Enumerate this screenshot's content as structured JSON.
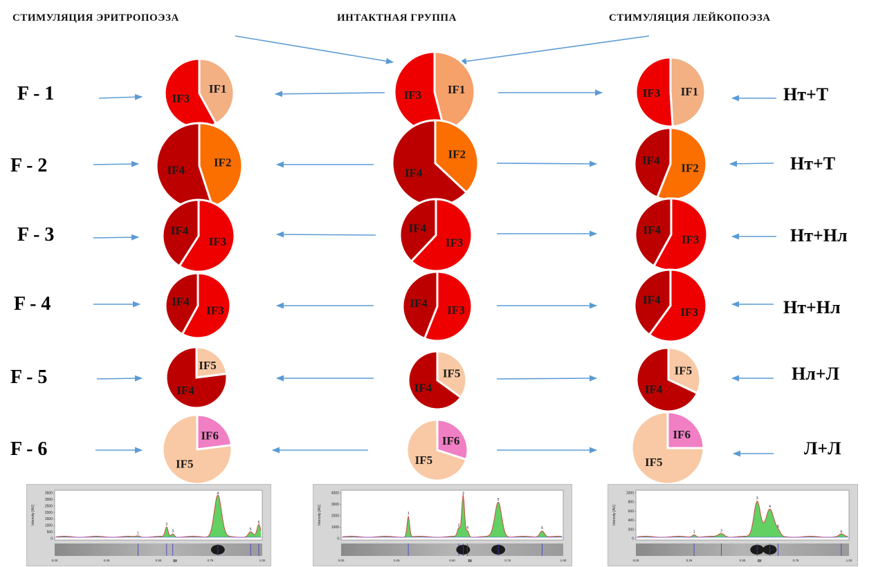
{
  "headers": {
    "left": "СТИМУЛЯЦИЯ ЭРИТРОПОЭЗА",
    "center": "ИНТАКТНАЯ ГРУППА",
    "right": "СТИМУЛЯЦИЯ ЛЕЙКОПОЭЗА"
  },
  "rows": [
    {
      "label": "F - 1",
      "formula": "Нт+Т"
    },
    {
      "label": "F - 2",
      "formula": "Нт+Т"
    },
    {
      "label": "F - 3",
      "formula": "Нт+Нл"
    },
    {
      "label": "F - 4",
      "formula": "Нт+Нл"
    },
    {
      "label": "F - 5",
      "formula": "Нл+Л"
    },
    {
      "label": "F - 6",
      "formula": "Л+Л"
    }
  ],
  "colors": {
    "IF1": "#f2b083",
    "IF2": "#fb6e00",
    "IF3": "#ef0000",
    "IF4": "#bc0000",
    "IF5": "#f8c9a4",
    "IF6": "#f07fc4",
    "IF1_center": "#f6a06a",
    "arrow": "#5b9bd5"
  },
  "pies": [
    [
      {
        "slices": [
          {
            "label": "IF1",
            "fraction": 0.42,
            "color": "IF1"
          },
          {
            "label": "IF3",
            "fraction": 0.58,
            "color": "IF3"
          }
        ]
      },
      {
        "slices": [
          {
            "label": "IF1",
            "fraction": 0.46,
            "color": "IF1_center"
          },
          {
            "label": "IF3",
            "fraction": 0.54,
            "color": "IF3"
          }
        ]
      },
      {
        "slices": [
          {
            "label": "IF1",
            "fraction": 0.49,
            "color": "IF1"
          },
          {
            "label": "IF3",
            "fraction": 0.51,
            "color": "IF3"
          }
        ]
      }
    ],
    [
      {
        "slices": [
          {
            "label": "IF2",
            "fraction": 0.45,
            "color": "IF2"
          },
          {
            "label": "IF4",
            "fraction": 0.55,
            "color": "IF4"
          }
        ]
      },
      {
        "slices": [
          {
            "label": "IF2",
            "fraction": 0.37,
            "color": "IF2"
          },
          {
            "label": "IF4",
            "fraction": 0.63,
            "color": "IF4"
          }
        ]
      },
      {
        "slices": [
          {
            "label": "IF2",
            "fraction": 0.56,
            "color": "IF2"
          },
          {
            "label": "IF4",
            "fraction": 0.44,
            "color": "IF4"
          }
        ]
      }
    ],
    [
      {
        "slices": [
          {
            "label": "IF3",
            "fraction": 0.59,
            "color": "IF3"
          },
          {
            "label": "IF4",
            "fraction": 0.41,
            "color": "IF4"
          }
        ]
      },
      {
        "slices": [
          {
            "label": "IF3",
            "fraction": 0.62,
            "color": "IF3"
          },
          {
            "label": "IF4",
            "fraction": 0.38,
            "color": "IF4"
          }
        ]
      },
      {
        "slices": [
          {
            "label": "IF3",
            "fraction": 0.58,
            "color": "IF3"
          },
          {
            "label": "IF4",
            "fraction": 0.42,
            "color": "IF4"
          }
        ]
      }
    ],
    [
      {
        "slices": [
          {
            "label": "IF3",
            "fraction": 0.58,
            "color": "IF3"
          },
          {
            "label": "IF4",
            "fraction": 0.42,
            "color": "IF4"
          }
        ]
      },
      {
        "slices": [
          {
            "label": "IF3",
            "fraction": 0.56,
            "color": "IF3"
          },
          {
            "label": "IF4",
            "fraction": 0.44,
            "color": "IF4"
          }
        ]
      },
      {
        "slices": [
          {
            "label": "IF3",
            "fraction": 0.6,
            "color": "IF3"
          },
          {
            "label": "IF4",
            "fraction": 0.4,
            "color": "IF4"
          }
        ]
      }
    ],
    [
      {
        "slices": [
          {
            "label": "IF5",
            "fraction": 0.23,
            "color": "IF5"
          },
          {
            "label": "IF4",
            "fraction": 0.77,
            "color": "IF4"
          }
        ]
      },
      {
        "slices": [
          {
            "label": "IF5",
            "fraction": 0.35,
            "color": "IF5"
          },
          {
            "label": "IF4",
            "fraction": 0.65,
            "color": "IF4"
          }
        ]
      },
      {
        "slices": [
          {
            "label": "IF5",
            "fraction": 0.32,
            "color": "IF5"
          },
          {
            "label": "IF4",
            "fraction": 0.68,
            "color": "IF4"
          }
        ]
      }
    ],
    [
      {
        "slices": [
          {
            "label": "IF6",
            "fraction": 0.23,
            "color": "IF6"
          },
          {
            "label": "IF5",
            "fraction": 0.77,
            "color": "IF5"
          }
        ]
      },
      {
        "slices": [
          {
            "label": "IF6",
            "fraction": 0.3,
            "color": "IF6"
          },
          {
            "label": "IF5",
            "fraction": 0.7,
            "color": "IF5"
          }
        ]
      },
      {
        "slices": [
          {
            "label": "IF6",
            "fraction": 0.25,
            "color": "IF6"
          },
          {
            "label": "IF5",
            "fraction": 0.75,
            "color": "IF5"
          }
        ]
      }
    ]
  ],
  "densitograms": [
    {
      "ylabel": "Intensity [AU]",
      "yticks": [
        "3500",
        "3000",
        "2500",
        "2000",
        "1500",
        "1000",
        "500",
        "0"
      ],
      "xticks": [
        "0.00",
        "0.25",
        "0.50",
        "0.75",
        "1.00"
      ],
      "xlabel": "Rf",
      "ymax": 3700,
      "peaks": [
        {
          "id": "1",
          "x": 0.4,
          "height": 100,
          "width": 0.012
        },
        {
          "id": "2",
          "x": 0.54,
          "height": 820,
          "width": 0.01
        },
        {
          "id": "3",
          "x": 0.57,
          "height": 280,
          "width": 0.01
        },
        {
          "id": "4",
          "x": 0.79,
          "height": 3500,
          "width": 0.025
        },
        {
          "id": "5",
          "x": 0.95,
          "height": 420,
          "width": 0.015
        },
        {
          "id": "6",
          "x": 0.99,
          "height": 1000,
          "width": 0.012
        }
      ]
    },
    {
      "ylabel": "Intensity [AU]",
      "yticks": [
        "4000",
        "3000",
        "2000",
        "1000",
        "0"
      ],
      "xticks": [
        "0.00",
        "0.25",
        "0.50",
        "0.75",
        "1.00"
      ],
      "xlabel": "Rf",
      "ymax": 4200,
      "peaks": [
        {
          "id": "1",
          "x": 0.3,
          "height": 2000,
          "width": 0.008
        },
        {
          "id": "2",
          "x": 0.53,
          "height": 800,
          "width": 0.009
        },
        {
          "id": "3",
          "x": 0.55,
          "height": 4000,
          "width": 0.009
        },
        {
          "id": "4",
          "x": 0.57,
          "height": 600,
          "width": 0.008
        },
        {
          "id": "5",
          "x": 0.71,
          "height": 3300,
          "width": 0.022
        },
        {
          "id": "6",
          "x": 0.91,
          "height": 600,
          "width": 0.015
        }
      ]
    },
    {
      "ylabel": "Intensity [AU]",
      "yticks": [
        "1000",
        "800",
        "600",
        "400",
        "200",
        "0"
      ],
      "xticks": [
        "0.00",
        "0.25",
        "0.50",
        "0.75",
        "1.00"
      ],
      "xlabel": "Rf",
      "ymax": 1050,
      "peaks": [
        {
          "id": "1",
          "x": 0.27,
          "height": 60,
          "width": 0.012
        },
        {
          "id": "2",
          "x": 0.4,
          "height": 80,
          "width": 0.02
        },
        {
          "id": "3",
          "x": 0.57,
          "height": 850,
          "width": 0.022
        },
        {
          "id": "4",
          "x": 0.63,
          "height": 660,
          "width": 0.028
        },
        {
          "id": "5",
          "x": 0.67,
          "height": 100,
          "width": 0.015
        },
        {
          "id": "6",
          "x": 0.97,
          "height": 60,
          "width": 0.015
        }
      ]
    }
  ]
}
